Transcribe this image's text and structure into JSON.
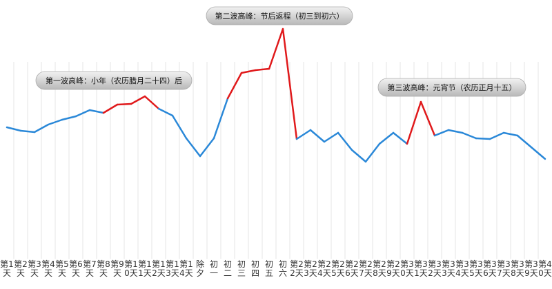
{
  "chart_data": {
    "type": "line",
    "categories": [
      "第1天",
      "第2天",
      "第3天",
      "第4天",
      "第5天",
      "第6天",
      "第7天",
      "第8天",
      "第9天",
      "第10天",
      "第11天",
      "第12天",
      "第13天",
      "第14天",
      "除夕",
      "初一",
      "初二",
      "初三",
      "初四",
      "初五",
      "初六",
      "第22天",
      "第23天",
      "第24天",
      "第25天",
      "第26天",
      "第27天",
      "第28天",
      "第29天",
      "第30天",
      "第31天",
      "第32天",
      "第33天",
      "第34天",
      "第35天",
      "第36天",
      "第37天",
      "第38天",
      "第39天",
      "第40天"
    ],
    "series": [
      {
        "color": "#2a88d8",
        "values": [
          195,
          190,
          188,
          199,
          206,
          211,
          220,
          216,
          228,
          229,
          240,
          222,
          212,
          179,
          153,
          179,
          237,
          274,
          278,
          280,
          338,
          178,
          191,
          174,
          187,
          162,
          145,
          171,
          187,
          171,
          232,
          183,
          191,
          187,
          179,
          178,
          187,
          183,
          166,
          149
        ]
      }
    ],
    "highlight": {
      "color": "#e0191b",
      "ranges": [
        [
          7,
          11
        ],
        [
          16,
          21
        ],
        [
          29,
          31
        ]
      ]
    },
    "ylim": [
      0,
      380
    ],
    "annotations": [
      "第一波高峰：小年（农历腊月二十四）后",
      "第二波高峰：节后返程（初三到初六）",
      "第三波高峰：元宵节（农历正月十五）"
    ]
  }
}
